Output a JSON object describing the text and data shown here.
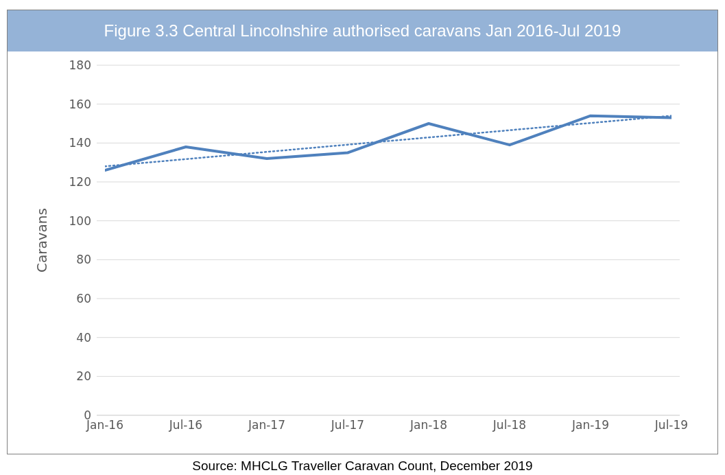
{
  "chart_data": {
    "type": "line",
    "title": "Figure 3.3 Central Lincolnshire authorised caravans Jan 2016-Jul 2019",
    "ylabel": "Caravans",
    "annotations": [
      "Source: MHCLG Traveller Caravan Count, December 2019"
    ],
    "categories": [
      "Jan-16",
      "Jul-16",
      "Jan-17",
      "Jul-17",
      "Jan-18",
      "Jul-18",
      "Jan-19",
      "Jul-19"
    ],
    "series": [
      {
        "color": "#4f81bd",
        "values": [
          126,
          138,
          132,
          135,
          150,
          139,
          154,
          153
        ],
        "line_style": "solid"
      },
      {
        "type": "line",
        "color": "#4f81bd",
        "x": [
          "Jan-16",
          "Jul-19"
        ],
        "values": [
          128,
          154
        ],
        "line_style": "dotted"
      }
    ],
    "ylim": [
      0,
      180
    ],
    "yticks": [
      0,
      20,
      40,
      60,
      80,
      100,
      120,
      140,
      160,
      180
    ],
    "grid": "y",
    "marker": "none"
  }
}
